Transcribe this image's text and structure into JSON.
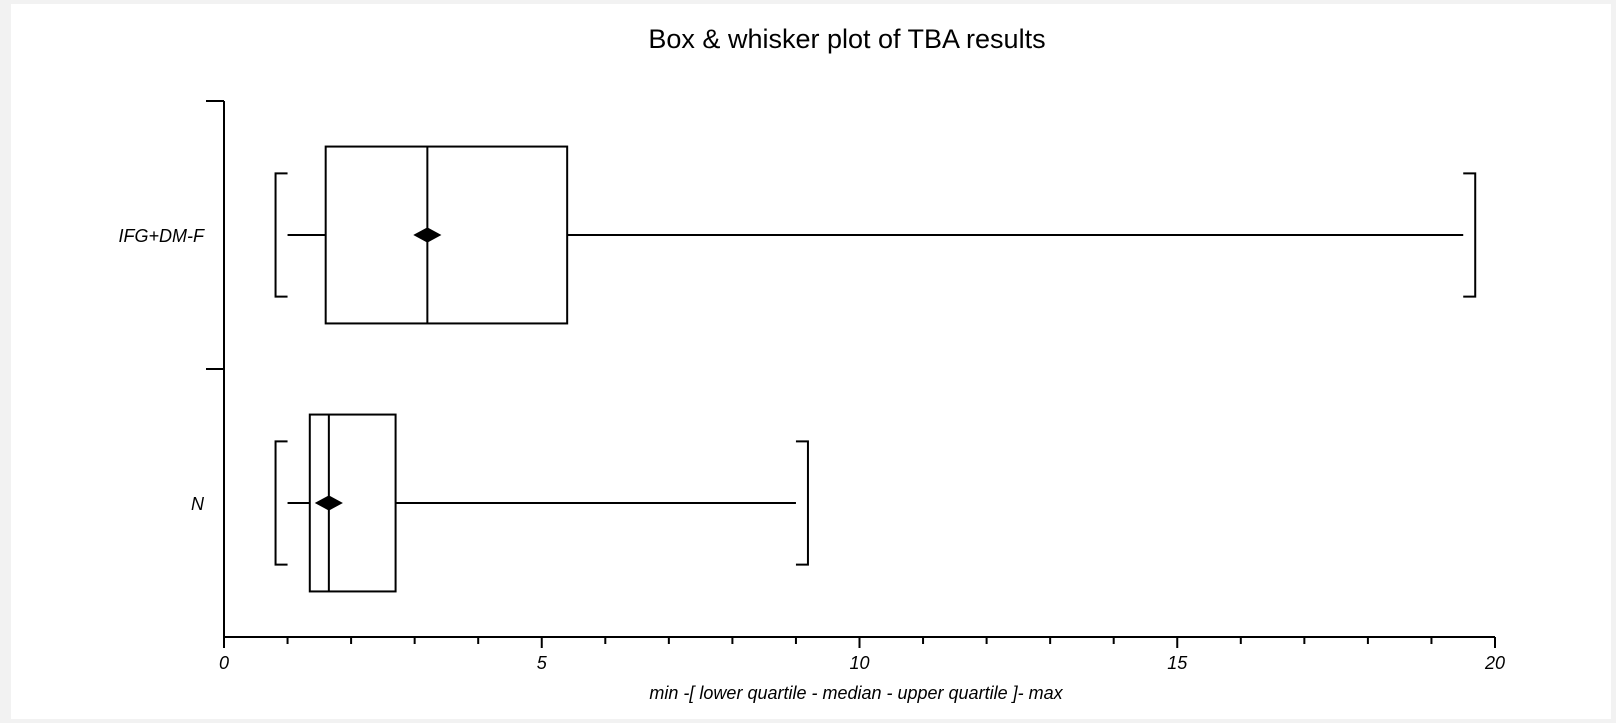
{
  "chart_data": {
    "type": "box",
    "orientation": "horizontal",
    "title": "Box & whisker plot of TBA results",
    "xlabel": "min -[ lower quartile - median - upper quartile ]- max",
    "ylabel": "",
    "xlim": [
      0,
      20
    ],
    "x_ticks": [
      0,
      5,
      10,
      15,
      20
    ],
    "x_minor_step": 1,
    "grid": false,
    "legend": "none",
    "colors": {
      "axis": "#000000",
      "box_fill": "#ffffff",
      "highlight_median": "#c0392b"
    },
    "series": [
      {
        "name": "IFG+DM-F",
        "min": 1.0,
        "q1": 1.6,
        "median": 3.2,
        "q3": 5.4,
        "max": 19.5,
        "mean": 3.2,
        "median_color": "#c0392b"
      },
      {
        "name": "N",
        "min": 1.0,
        "q1": 1.35,
        "median": 1.65,
        "q3": 2.7,
        "max": 9.0,
        "mean": 1.65,
        "median_color": "#000000"
      }
    ]
  }
}
